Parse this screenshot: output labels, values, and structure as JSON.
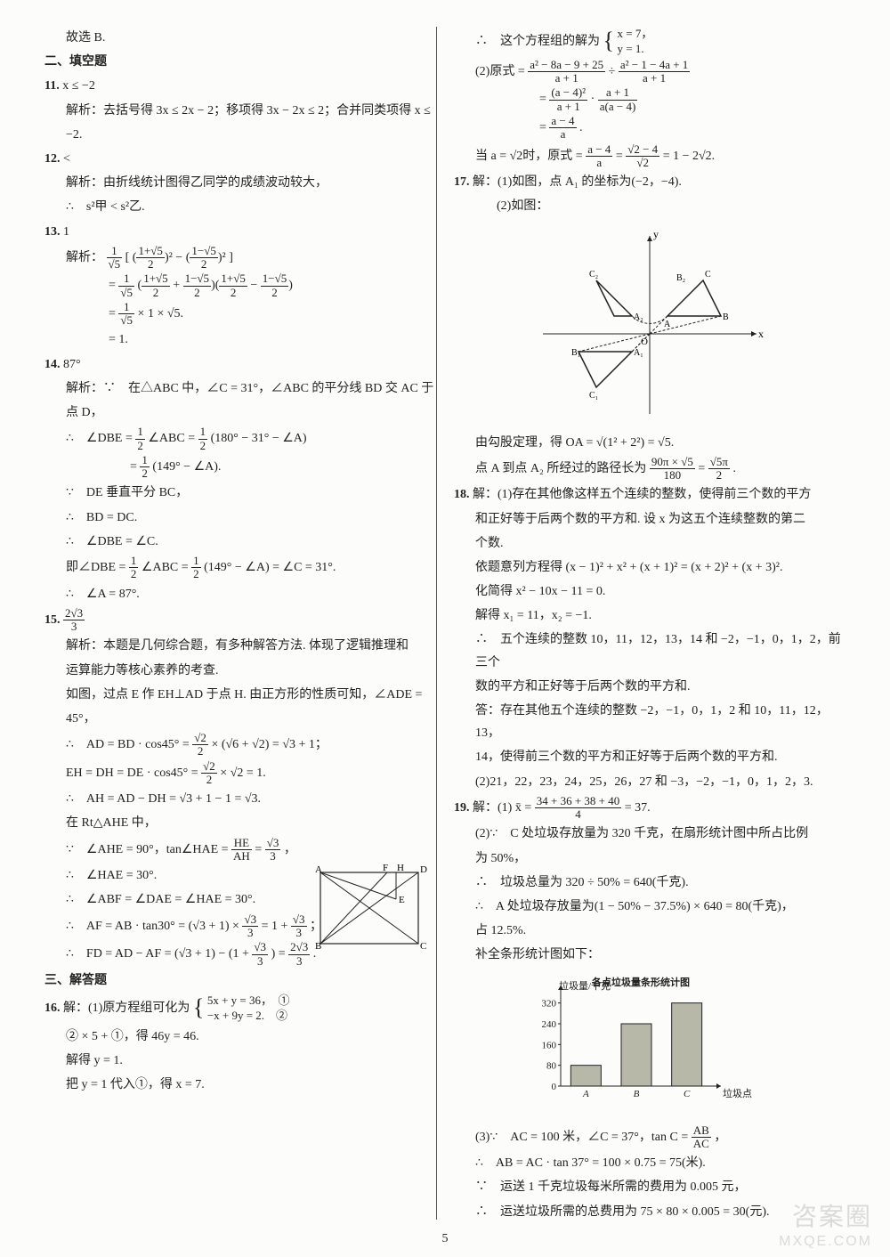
{
  "page_number": "5",
  "watermark_top": "咨案圈",
  "watermark_bottom": "MXQE.COM",
  "left": {
    "l1": "故选 B.",
    "h2": "二、填空题",
    "q11": "11.",
    "q11a": "x ≤ −2",
    "q11b": "解析：去括号得 3x ≤ 2x − 2；移项得 3x − 2x ≤ 2；合并同类项得 x ≤",
    "q11c": "−2.",
    "q12": "12.",
    "q12a": "<",
    "q12b": "解析：由折线统计图得乙同学的成绩波动较大，",
    "q12c": "∴　s²甲 < s²乙.",
    "q13": "13.",
    "q13a": "1",
    "q13b": "解析：",
    "q13_eq1a": "1",
    "q13_eq1b": "√5",
    "q13_eq2a": "1+√5",
    "q13_eq2b": "2",
    "q13_eq3a": "1−√5",
    "q13_eq3b": "2",
    "q13_line2": "= ",
    "q13_line3": "× 1 × √5.",
    "q13_line4": "= 1.",
    "q14": "14.",
    "q14a": "87°",
    "q14b": "解析：∵　在△ABC 中，∠C = 31°，∠ABC 的平分线 BD 交 AC 于",
    "q14c": "点 D，",
    "q14d": "∴　∠DBE = ",
    "q14d2": "∠ABC = ",
    "q14d3": "(180° − 31° − ∠A)",
    "q14e": "= ",
    "q14e2": "(149° − ∠A).",
    "q14f": "∵　DE 垂直平分 BC，",
    "q14g": "∴　BD = DC.",
    "q14h": "∴　∠DBE = ∠C.",
    "q14i": "即∠DBE = ",
    "q14i2": "∠ABC = ",
    "q14i3": "(149° − ∠A) = ∠C = 31°.",
    "q14j": "∴　∠A = 87°.",
    "q15": "15.",
    "q15a_n": "2√3",
    "q15a_d": "3",
    "q15b": "解析：本题是几何综合题，有多种解答方法. 体现了逻辑推理和",
    "q15c": "运算能力等核心素养的考查.",
    "q15d": "如图，过点 E 作 EH⊥AD 于点 H. 由正方形的性质可知，∠ADE =",
    "q15e": "45°，",
    "q15f": "∴　AD = BD · cos45° = ",
    "q15f2": " × (√6 + √2) = √3 + 1；",
    "q15g": "EH = DH = DE · cos45° = ",
    "q15g2": " × √2 = 1.",
    "q15h": "∴　AH = AD − DH = √3 + 1 − 1 = √3.",
    "q15i": "在 Rt△AHE 中，",
    "q15j": "∵　∠AHE = 90°，tan∠HAE = ",
    "q15j_n": "HE",
    "q15j_d": "AH",
    "q15j2": " = ",
    "q15j3_n": "√3",
    "q15j3_d": "3",
    "q15j4": "，",
    "q15k": "∴　∠HAE = 30°.",
    "q15l": "∴　∠ABF = ∠DAE = ∠HAE = 30°.",
    "q15m": "∴　AF = AB · tan30° = (√3 + 1) × ",
    "q15m2": " = 1 + ",
    "q15m3": "；",
    "q15n": "∴　FD = AD − AF = (√3 + 1) − (1 + ",
    "q15n2": ") = ",
    "q15n3": ".",
    "h3": "三、解答题",
    "q16": "16.",
    "q16a": "解：(1)原方程组可化为",
    "q16_sys1": "5x + y = 36，　①",
    "q16_sys2": "−x + 9y = 2.　②",
    "q16b": "② × 5 + ①，得 46y = 46.",
    "q16c": "解得 y = 1.",
    "q16d": "把 y = 1 代入①，得 x = 7.",
    "geom": {
      "A": "A",
      "B": "B",
      "C": "C",
      "D": "D",
      "E": "E",
      "F": "F",
      "H": "H"
    },
    "half_n": "1",
    "half_d": "2",
    "s2_n": "√2",
    "s2_d": "2",
    "s3_3n": "√3",
    "s3_3d": "3",
    "s23_3n": "2√3",
    "s23_3d": "3"
  },
  "right": {
    "r1": "∴　这个方程组的解为",
    "r1_sys1": "x = 7，",
    "r1_sys2": "y = 1.",
    "r2": "(2)原式 = ",
    "r2a_n": "a² − 8a − 9 + 25",
    "r2a_d": "a + 1",
    "r2b": " ÷ ",
    "r2b_n": "a² − 1 − 4a + 1",
    "r2b_d": "a + 1",
    "r3": "= ",
    "r3a_n": "(a − 4)²",
    "r3a_d": "a + 1",
    "r3b": " · ",
    "r3b_n": "a + 1",
    "r3b_d": "a(a − 4)",
    "r4": "= ",
    "r4_n": "a − 4",
    "r4_d": "a",
    "r4e": ".",
    "r5": "当 a = √2时，原式 = ",
    "r5a_n": "a − 4",
    "r5a_d": "a",
    "r5b": " = ",
    "r5b_n": "√2 − 4",
    "r5b_d": "√2",
    "r5c": " = 1 − 2√2.",
    "q17": "17.",
    "q17a": "解：(1)如图，点 A₁ 的坐标为(−2，−4).",
    "q17b": "(2)如图：",
    "q17c": "由勾股定理，得 OA = √(1² + 2²) = √5.",
    "q17d": "点 A 到点 A₂ 所经过的路径长为 ",
    "q17d_n": "90π × √5",
    "q17d_d": "180",
    "q17d2": " = ",
    "q17d2_n": "√5π",
    "q17d2_d": "2",
    "q17d3": ".",
    "q18": "18.",
    "q18a": "解：(1)存在其他像这样五个连续的整数，使得前三个数的平方",
    "q18b": "和正好等于后两个数的平方和. 设 x 为这五个连续整数的第二",
    "q18c": "个数.",
    "q18d": "依题意列方程得 (x − 1)² + x² + (x + 1)² = (x + 2)² + (x + 3)².",
    "q18e": "化简得 x² − 10x − 11 = 0.",
    "q18f": "解得 x₁ = 11，x₂ = −1.",
    "q18g": "∴　五个连续的整数 10，11，12，13，14 和 −2，−1，0，1，2，前三个",
    "q18h": "数的平方和正好等于后两个数的平方和.",
    "q18i": "答：存在其他五个连续的整数 −2，−1，0，1，2 和 10，11，12，13，",
    "q18j": "14，使得前三个数的平方和正好等于后两个数的平方和.",
    "q18k": "(2)21，22，23，24，25，26，27 和 −3，−2，−1，0，1，2，3.",
    "q19": "19.",
    "q19a": "解：(1) x̄ = ",
    "q19a_n": "34 + 36 + 38 + 40",
    "q19a_d": "4",
    "q19a2": " = 37.",
    "q19b": "(2)∵　C 处垃圾存放量为 320 千克，在扇形统计图中所占比例",
    "q19c": "为 50%，",
    "q19d": "∴　垃圾总量为 320 ÷ 50% = 640(千克).",
    "q19e": "∴　A 处垃圾存放量为(1 − 50% − 37.5%) × 640 = 80(千克)，",
    "q19f": "占 12.5%.",
    "q19g": "补全条形统计图如下：",
    "q19h": "(3)∵　AC = 100 米，∠C = 37°，tan C = ",
    "q19h_n": "AB",
    "q19h_d": "AC",
    "q19h2": "，",
    "q19i": "∴　AB = AC · tan 37° = 100 × 0.75 = 75(米).",
    "q19j": "∵　运送 1 千克垃圾每米所需的费用为 0.005 元，",
    "q19k": "∴　运送垃圾所需的总费用为 75 × 80 × 0.005 = 30(元).",
    "chart": {
      "title": "各点垃圾量条形统计图",
      "ylabel": "垃圾量/千克",
      "xlabel": "垃圾点",
      "categories": [
        "A",
        "B",
        "C"
      ],
      "values": [
        80,
        240,
        320
      ],
      "ylim": 360,
      "yticks": [
        0,
        80,
        160,
        240,
        320
      ],
      "bar_color": "#b8b8a8",
      "axis_color": "#222"
    },
    "coord": {
      "labels": [
        "x",
        "y",
        "O",
        "A",
        "B",
        "C",
        "A₁",
        "B₁",
        "C₁",
        "A₂",
        "B₂",
        "C₂"
      ]
    }
  }
}
